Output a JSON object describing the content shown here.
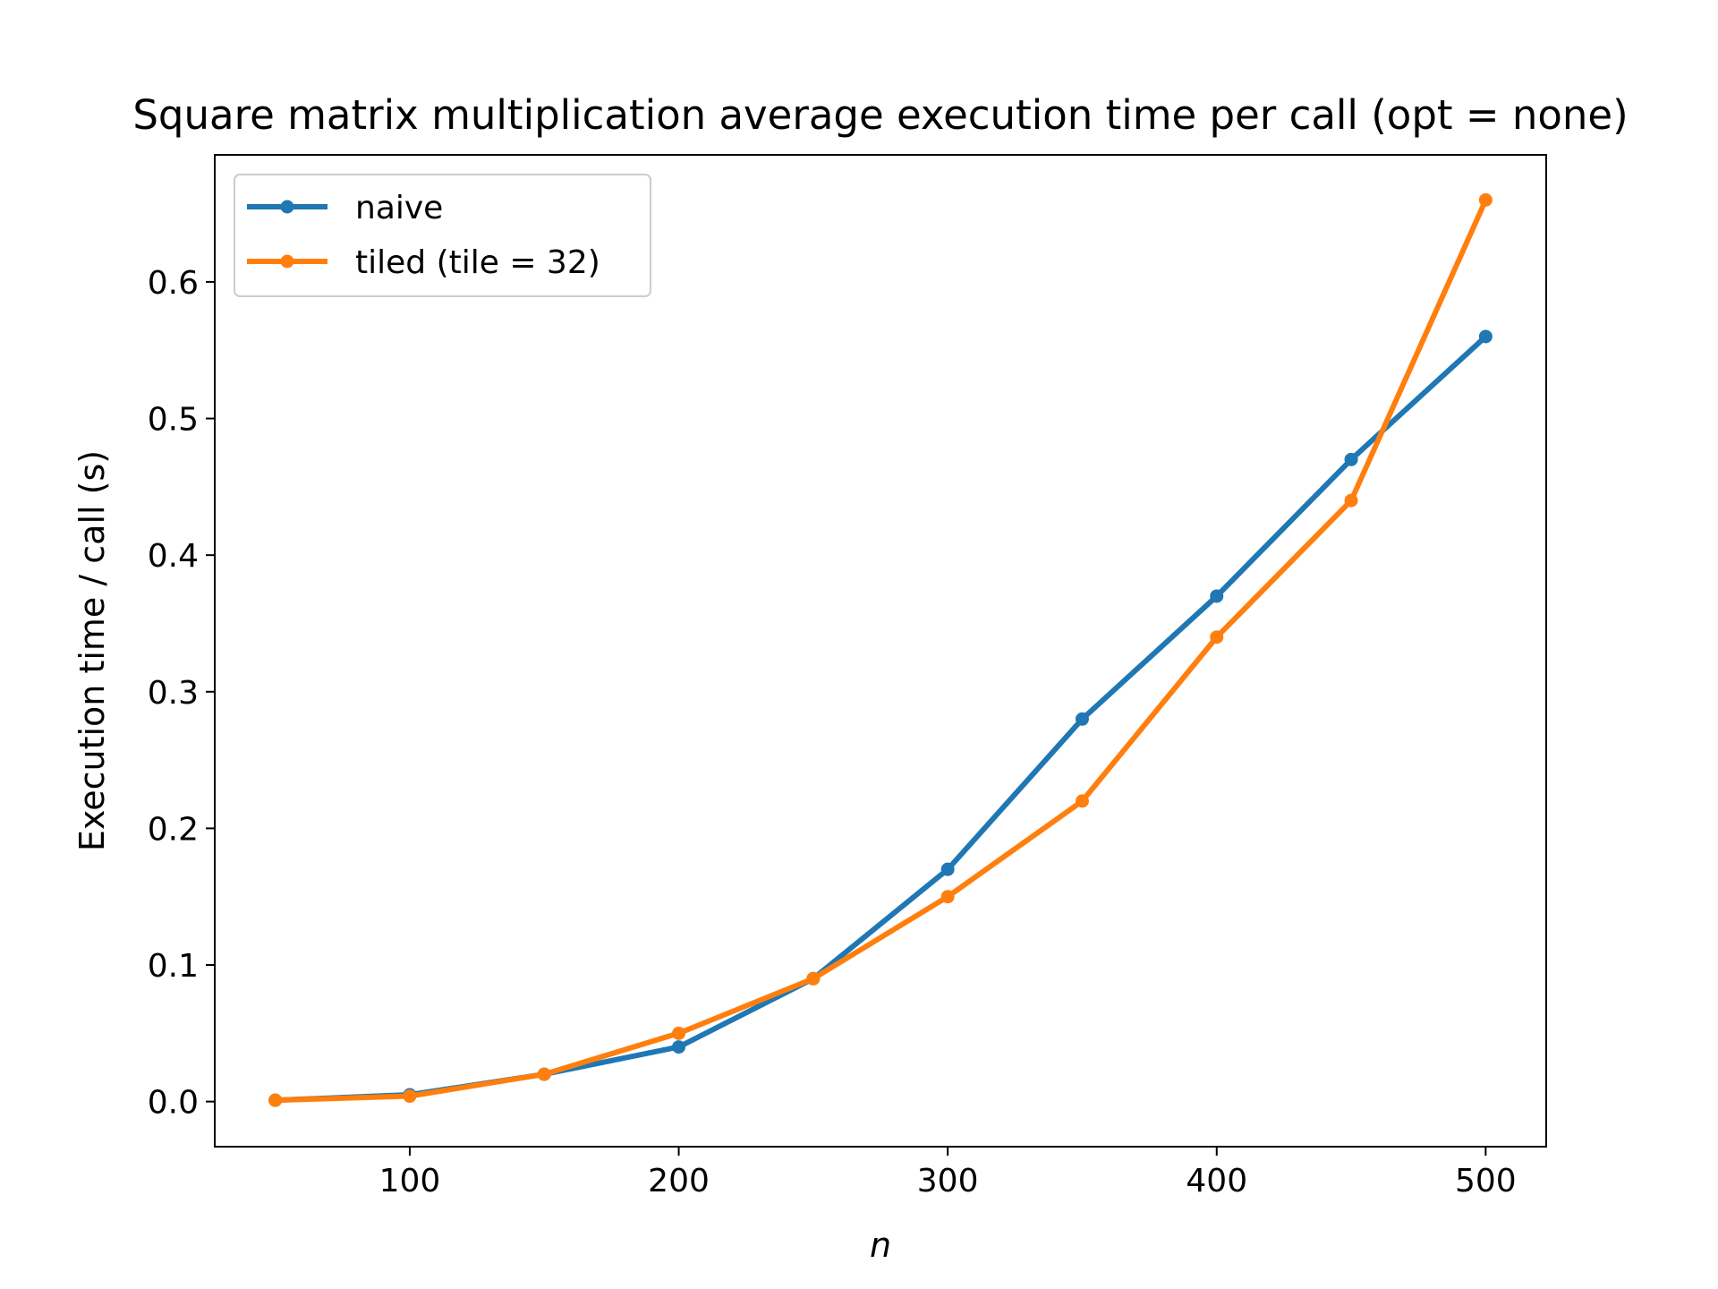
{
  "chart_data": {
    "type": "line",
    "title": "Square matrix multiplication average execution time per call (opt = none)",
    "xlabel": "n",
    "ylabel": "Execution time / call (s)",
    "xlim": [
      27.5,
      522.5
    ],
    "ylim": [
      -0.033,
      0.693
    ],
    "xticks": [
      100,
      200,
      300,
      400,
      500
    ],
    "yticks": [
      0.0,
      0.1,
      0.2,
      0.3,
      0.4,
      0.5,
      0.6
    ],
    "xtick_labels": [
      "100",
      "200",
      "300",
      "400",
      "500"
    ],
    "ytick_labels": [
      "0.0",
      "0.1",
      "0.2",
      "0.3",
      "0.4",
      "0.5",
      "0.6"
    ],
    "grid": false,
    "legend_position": "top-left",
    "x": [
      50,
      100,
      150,
      200,
      250,
      300,
      350,
      400,
      450,
      500
    ],
    "series": [
      {
        "name": "naive",
        "color": "#1f77b4",
        "values": [
          0.001,
          0.005,
          0.02,
          0.04,
          0.09,
          0.17,
          0.28,
          0.37,
          0.47,
          0.56
        ]
      },
      {
        "name": "tiled (tile = 32)",
        "color": "#ff7f0e",
        "values": [
          0.001,
          0.004,
          0.02,
          0.05,
          0.09,
          0.15,
          0.22,
          0.34,
          0.44,
          0.66
        ]
      }
    ]
  }
}
